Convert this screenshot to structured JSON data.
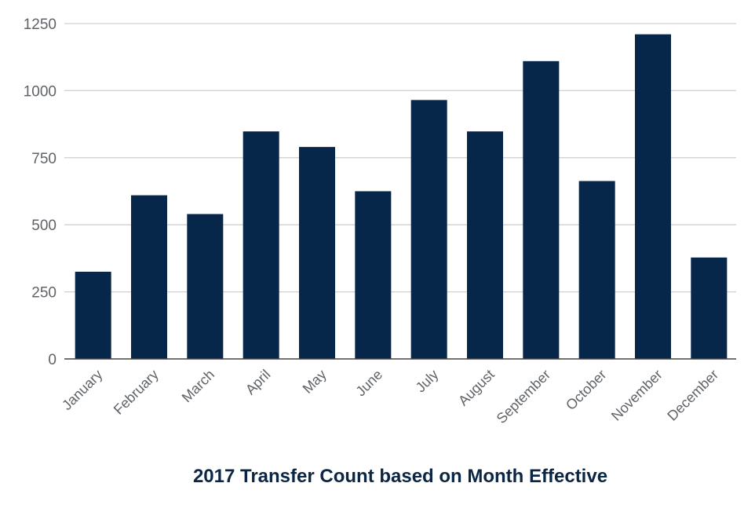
{
  "chart_data": {
    "type": "bar",
    "title": "2017 Transfer Count based on Month Effective",
    "xlabel": "",
    "ylabel": "",
    "categories": [
      "January",
      "February",
      "March",
      "April",
      "May",
      "June",
      "July",
      "August",
      "September",
      "October",
      "November",
      "December"
    ],
    "values": [
      325,
      610,
      540,
      848,
      790,
      625,
      965,
      848,
      1110,
      663,
      1210,
      378
    ],
    "ylim": [
      0,
      1250
    ],
    "yticks": [
      "0",
      "250",
      "500",
      "750",
      "1000",
      "1250"
    ],
    "grid": true,
    "legend": "none",
    "colors": {
      "bar": "#06264a",
      "grid": "#d0d0d0",
      "axis": "#444444",
      "title": "#0b2545"
    }
  }
}
